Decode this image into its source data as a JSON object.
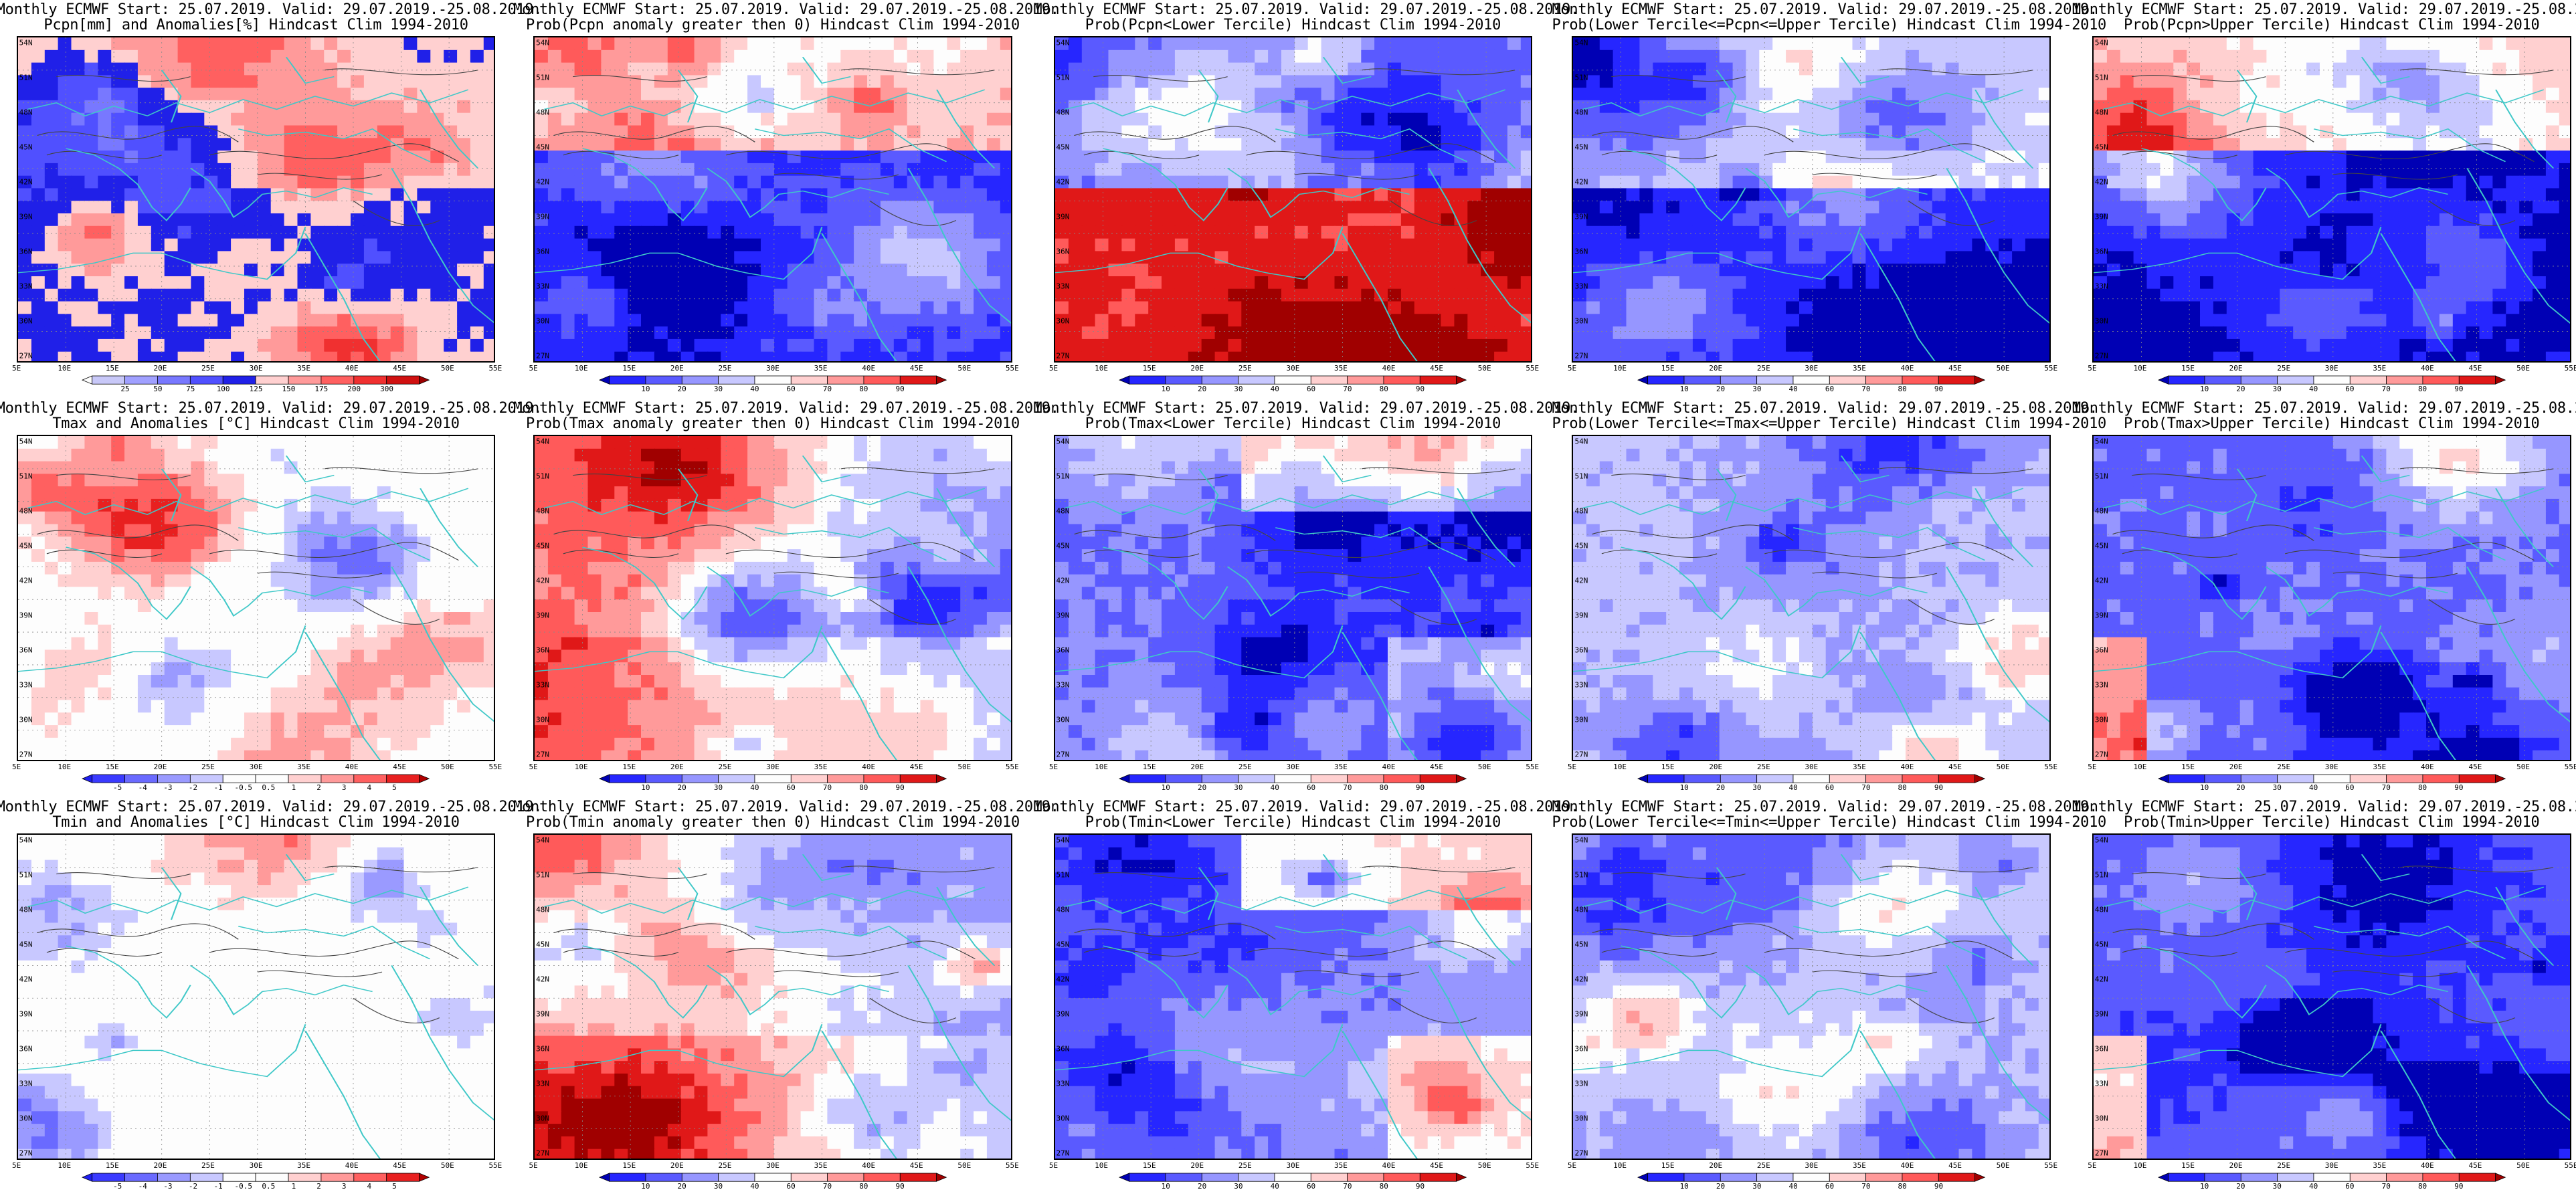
{
  "header_line": "Monthly ECMWF Start: 25.07.2019. Valid: 29.07.2019.-25.08.2019.",
  "lat_ticks": [
    "54N",
    "51N",
    "48N",
    "45N",
    "42N",
    "39N",
    "36N",
    "33N",
    "30N",
    "27N"
  ],
  "lon_ticks": [
    "5E",
    "10E",
    "15E",
    "20E",
    "25E",
    "30E",
    "35E",
    "40E",
    "45E",
    "50E",
    "55E"
  ],
  "colors": {
    "precip_anom": [
      "#fdfdfd",
      "#c8c8f8",
      "#a0a0ff",
      "#7878ff",
      "#5050ff",
      "#2020e8",
      "#ffd0d0",
      "#ff9a9a",
      "#ff6060",
      "#f03030",
      "#d01010",
      "#9c0000"
    ],
    "temp_anom": [
      "#1e1ef0",
      "#3a3aff",
      "#6a6aff",
      "#9a9aff",
      "#c8c8ff",
      "#fdfdfd",
      "#fdfdfd",
      "#ffd0d0",
      "#ff9a9a",
      "#ff6060",
      "#e82020",
      "#b00000"
    ],
    "prob": [
      "#0000b4",
      "#2626ff",
      "#5a5aff",
      "#9696ff",
      "#c8c8ff",
      "#fdfdfd",
      "#ffd0d0",
      "#ff9a9a",
      "#ff5a5a",
      "#e01818",
      "#a00000"
    ],
    "coast": "#3fc8c8",
    "contour": "#444444"
  },
  "rows": [
    {
      "variable": "Pcpn",
      "panels": [
        {
          "title2": "Pcpn[mm] and Anomalies[%] Hindcast Clim 1994-2010",
          "scale": "precip_anom",
          "colorbar_labels": [
            "25",
            "50",
            "75",
            "100",
            "125",
            "150",
            "175",
            "200",
            "300"
          ]
        },
        {
          "title2": "Prob(Pcpn anomaly greater then 0) Hindcast Clim 1994-2010",
          "scale": "prob",
          "colorbar_labels": [
            "10",
            "20",
            "30",
            "40",
            "60",
            "70",
            "80",
            "90"
          ]
        },
        {
          "title2": "Prob(Pcpn<Lower Tercile) Hindcast Clim 1994-2010",
          "scale": "prob",
          "colorbar_labels": [
            "10",
            "20",
            "30",
            "40",
            "60",
            "70",
            "80",
            "90"
          ]
        },
        {
          "title2": "Prob(Lower Tercile<=Pcpn<=Upper Tercile) Hindcast Clim 1994-2010",
          "scale": "prob",
          "colorbar_labels": [
            "10",
            "20",
            "30",
            "40",
            "60",
            "70",
            "80",
            "90"
          ]
        },
        {
          "title2": "Prob(Pcpn>Upper Tercile) Hindcast Clim 1994-2010",
          "scale": "prob",
          "colorbar_labels": [
            "10",
            "20",
            "30",
            "40",
            "60",
            "70",
            "80",
            "90"
          ]
        }
      ]
    },
    {
      "variable": "Tmax",
      "panels": [
        {
          "title2": "Tmax and Anomalies [°C] Hindcast Clim 1994-2010",
          "scale": "temp_anom",
          "colorbar_labels": [
            "-5",
            "-4",
            "-3",
            "-2",
            "-1",
            "-0.5",
            "0.5",
            "1",
            "2",
            "3",
            "4",
            "5"
          ]
        },
        {
          "title2": "Prob(Tmax anomaly greater then 0) Hindcast Clim 1994-2010",
          "scale": "prob",
          "colorbar_labels": [
            "10",
            "20",
            "30",
            "40",
            "60",
            "70",
            "80",
            "90"
          ]
        },
        {
          "title2": "Prob(Tmax<Lower Tercile) Hindcast Clim 1994-2010",
          "scale": "prob",
          "colorbar_labels": [
            "10",
            "20",
            "30",
            "40",
            "60",
            "70",
            "80",
            "90"
          ]
        },
        {
          "title2": "Prob(Lower Tercile<=Tmax<=Upper Tercile) Hindcast Clim 1994-2010",
          "scale": "prob",
          "colorbar_labels": [
            "10",
            "20",
            "30",
            "40",
            "60",
            "70",
            "80",
            "90"
          ]
        },
        {
          "title2": "Prob(Tmax>Upper Tercile) Hindcast Clim 1994-2010",
          "scale": "prob",
          "colorbar_labels": [
            "10",
            "20",
            "30",
            "40",
            "60",
            "70",
            "80",
            "90"
          ]
        }
      ]
    },
    {
      "variable": "Tmin",
      "panels": [
        {
          "title2": "Tmin and Anomalies [°C] Hindcast Clim 1994-2010",
          "scale": "temp_anom",
          "colorbar_labels": [
            "-5",
            "-4",
            "-3",
            "-2",
            "-1",
            "-0.5",
            "0.5",
            "1",
            "2",
            "3",
            "4",
            "5"
          ]
        },
        {
          "title2": "Prob(Tmin anomaly greater then 0) Hindcast Clim 1994-2010",
          "scale": "prob",
          "colorbar_labels": [
            "10",
            "20",
            "30",
            "40",
            "60",
            "70",
            "80",
            "90"
          ]
        },
        {
          "title2": "Prob(Tmin<Lower Tercile) Hindcast Clim 1994-2010",
          "scale": "prob",
          "colorbar_labels": [
            "10",
            "20",
            "30",
            "40",
            "60",
            "70",
            "80",
            "90"
          ]
        },
        {
          "title2": "Prob(Lower Tercile<=Tmin<=Upper Tercile) Hindcast Clim 1994-2010",
          "scale": "prob",
          "colorbar_labels": [
            "10",
            "20",
            "30",
            "40",
            "60",
            "70",
            "80",
            "90"
          ]
        },
        {
          "title2": "Prob(Tmin>Upper Tercile) Hindcast Clim 1994-2010",
          "scale": "prob",
          "colorbar_labels": [
            "10",
            "20",
            "30",
            "40",
            "60",
            "70",
            "80",
            "90"
          ]
        }
      ]
    }
  ]
}
